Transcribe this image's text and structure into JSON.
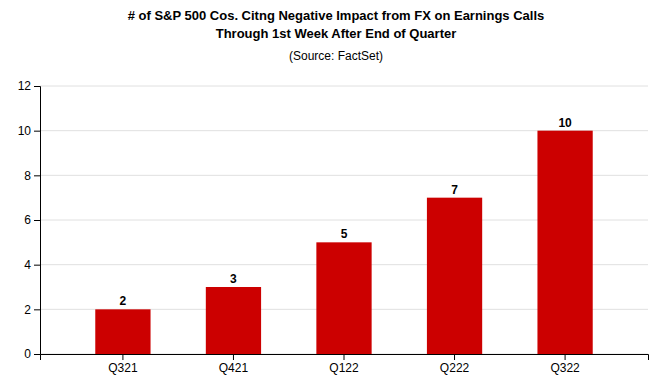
{
  "chart_data": {
    "type": "bar",
    "title": "# of S&P 500 Cos. Citng Negative Impact from FX on Earnings Calls",
    "subtitle": "Through 1st Week After End of Quarter",
    "annotations": [
      "(Source: FactSet)"
    ],
    "categories": [
      "Q321",
      "Q421",
      "Q122",
      "Q222",
      "Q322"
    ],
    "values": [
      2,
      3,
      5,
      7,
      10
    ],
    "color": "#cc0000",
    "ylim": [
      0,
      12
    ],
    "yticks": [
      0,
      2,
      4,
      6,
      8,
      10,
      12
    ],
    "grid": true,
    "data_labels": true
  }
}
